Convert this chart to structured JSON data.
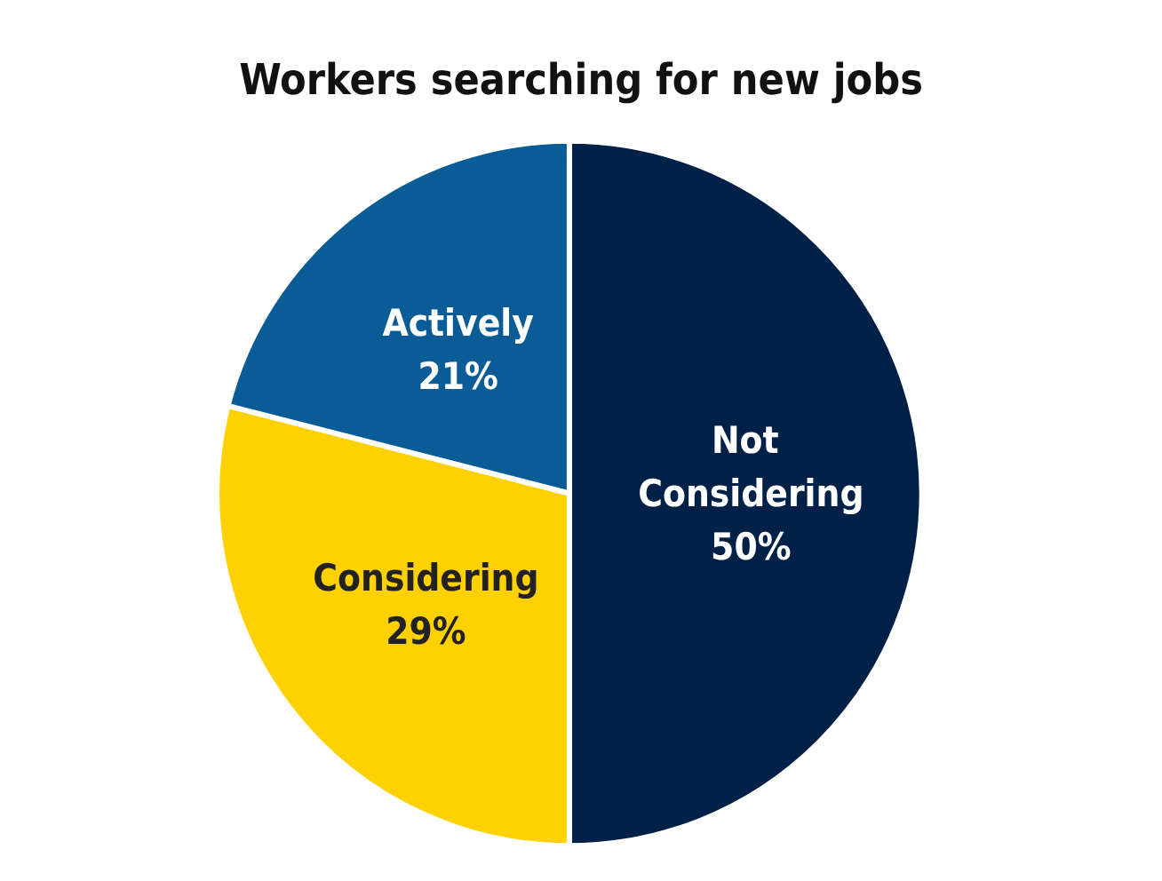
{
  "chart_data": {
    "type": "pie",
    "title": "Workers searching for new jobs",
    "categories": [
      "Not Considering",
      "Considering",
      "Actively"
    ],
    "values": [
      50,
      29,
      21
    ],
    "colors": [
      "#002147",
      "#ffd100",
      "#0a5c96"
    ],
    "value_labels": [
      "50%",
      "29%",
      "21%"
    ],
    "legend": false
  }
}
